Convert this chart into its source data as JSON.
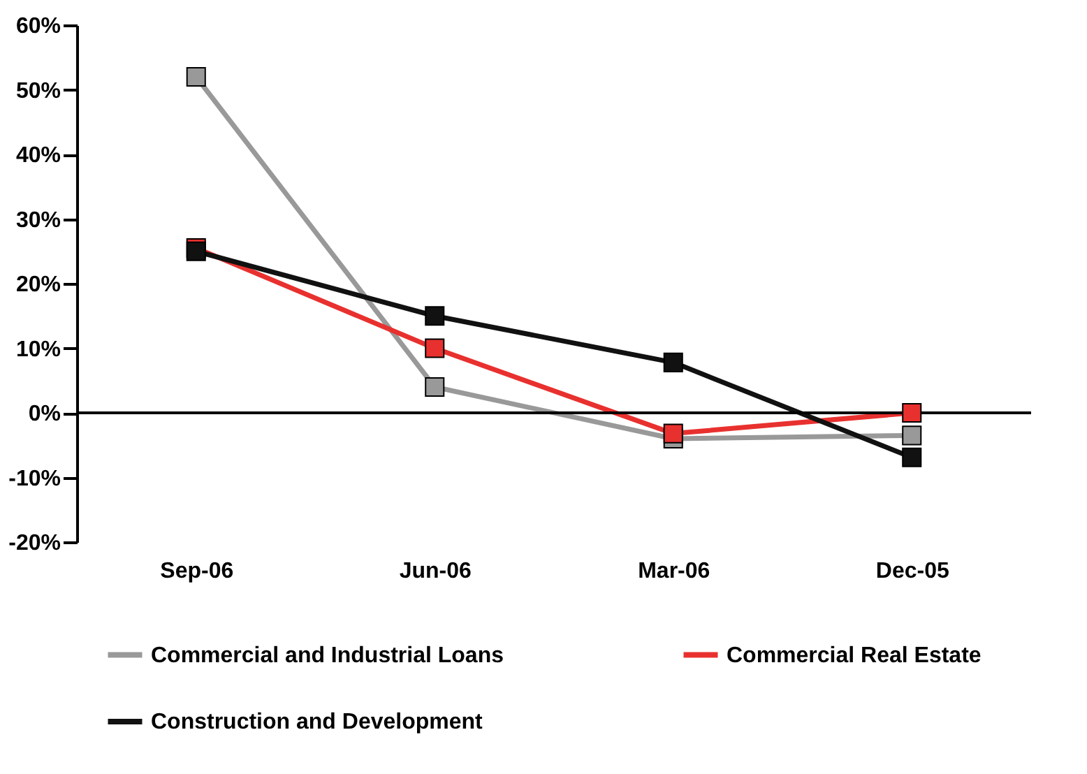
{
  "chart_data": {
    "type": "line",
    "categories": [
      "Sep-06",
      "Jun-06",
      "Mar-06",
      "Dec-05"
    ],
    "series": [
      {
        "name": "Commercial and Industrial Loans",
        "color": "#999999",
        "values": [
          52,
          4,
          -4,
          -3.5
        ]
      },
      {
        "name": "Commercial Real Estate",
        "color": "#e8312f",
        "values": [
          25.5,
          10,
          -3.2,
          0
        ]
      },
      {
        "name": "Construction and Development",
        "color": "#111111",
        "values": [
          25,
          15,
          7.8,
          -6.9
        ]
      }
    ],
    "ylim": [
      -20,
      60
    ],
    "yticks": [
      {
        "value": -20,
        "label": "-20%"
      },
      {
        "value": -10,
        "label": "-10%"
      },
      {
        "value": 0,
        "label": "0%"
      },
      {
        "value": 10,
        "label": "10%"
      },
      {
        "value": 20,
        "label": "20%"
      },
      {
        "value": 30,
        "label": "30%"
      },
      {
        "value": 40,
        "label": "40%"
      },
      {
        "value": 50,
        "label": "50%"
      },
      {
        "value": 60,
        "label": "60%"
      }
    ],
    "ref_lines": [
      {
        "axis": "y",
        "value": 0,
        "label": null,
        "color": "#000000"
      }
    ],
    "grid": false,
    "legend": "bottom",
    "marker": "square",
    "line_style": "solid"
  }
}
